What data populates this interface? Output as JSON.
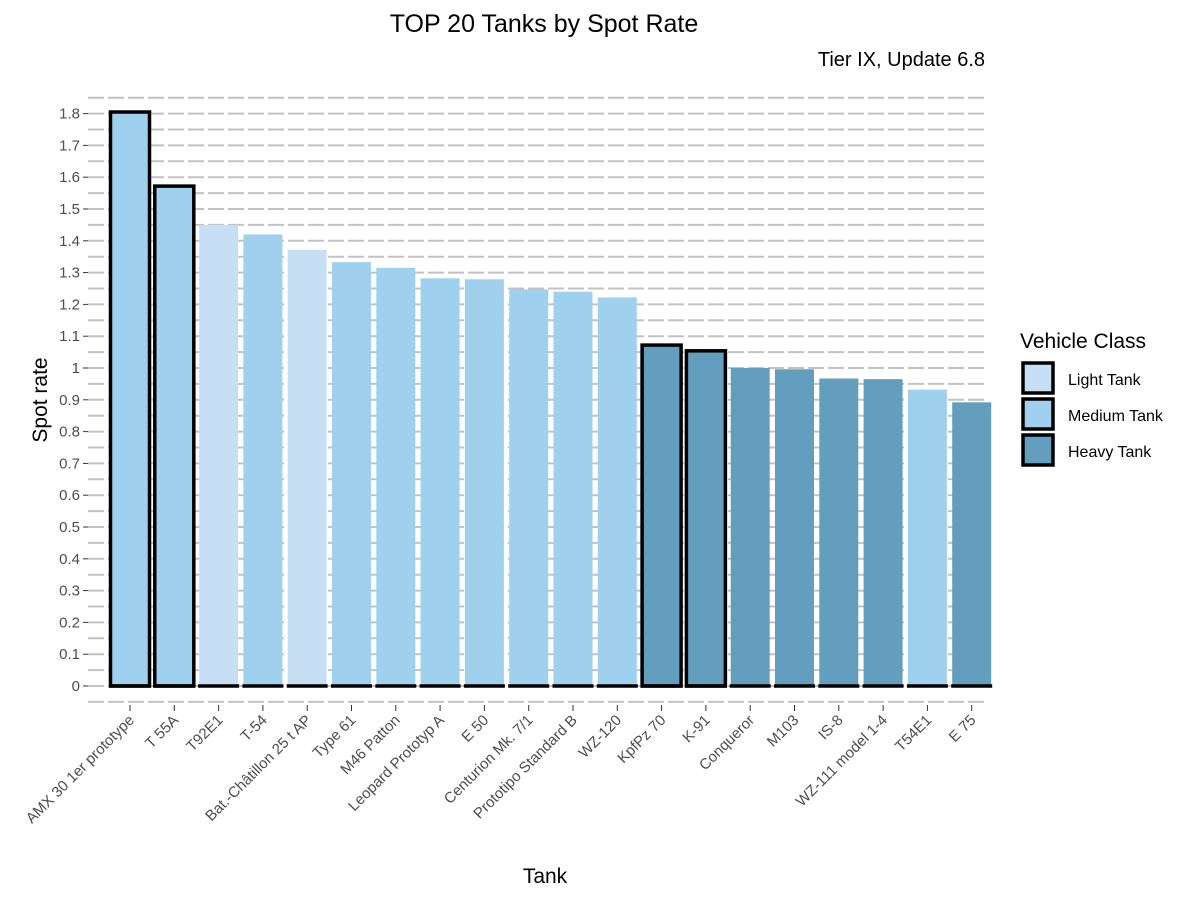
{
  "chart_data": {
    "type": "bar",
    "title": "TOP 20 Tanks by Spot Rate",
    "subtitle": "Tier IX, Update 6.8",
    "xlabel": "Tank",
    "ylabel": "Spot rate",
    "ylim": [
      0,
      1.8
    ],
    "yticks": [
      0,
      0.1,
      0.2,
      0.3,
      0.4,
      0.5,
      0.6,
      0.7,
      0.8,
      0.9,
      1,
      1.1,
      1.2,
      1.3,
      1.4,
      1.5,
      1.6,
      1.7,
      1.8
    ],
    "grid": true,
    "legend": {
      "title": "Vehicle Class",
      "position": "right",
      "entries": [
        {
          "label": "Light Tank",
          "color": "#c6dff4"
        },
        {
          "label": "Medium Tank",
          "color": "#9fd1ef"
        },
        {
          "label": "Heavy Tank",
          "color": "#639ebe"
        }
      ]
    },
    "categories": [
      "AMX 30 1er prototype",
      "T 55A",
      "T92E1",
      "T-54",
      "Bat.-Châtillon 25 t AP",
      "Type 61",
      "M46 Patton",
      "Leopard Prototyp A",
      "E 50",
      "Centurion Mk. 7/1",
      "Prototipo Standard B",
      "WZ-120",
      "KpfPz 70",
      "K-91",
      "Conqueror",
      "M103",
      "IS-8",
      "WZ-111 model 1-4",
      "T54E1",
      "E 75"
    ],
    "values": [
      1.805,
      1.572,
      1.45,
      1.42,
      1.372,
      1.333,
      1.315,
      1.282,
      1.279,
      1.247,
      1.24,
      1.222,
      1.072,
      1.054,
      1.0,
      0.996,
      0.967,
      0.965,
      0.932,
      0.892
    ],
    "classes": [
      "Medium Tank",
      "Medium Tank",
      "Light Tank",
      "Medium Tank",
      "Light Tank",
      "Medium Tank",
      "Medium Tank",
      "Medium Tank",
      "Medium Tank",
      "Medium Tank",
      "Medium Tank",
      "Medium Tank",
      "Heavy Tank",
      "Heavy Tank",
      "Heavy Tank",
      "Heavy Tank",
      "Heavy Tank",
      "Heavy Tank",
      "Medium Tank",
      "Heavy Tank"
    ],
    "highlighted": [
      true,
      true,
      false,
      false,
      false,
      false,
      false,
      false,
      false,
      false,
      false,
      false,
      true,
      true,
      false,
      false,
      false,
      false,
      false,
      false
    ]
  }
}
